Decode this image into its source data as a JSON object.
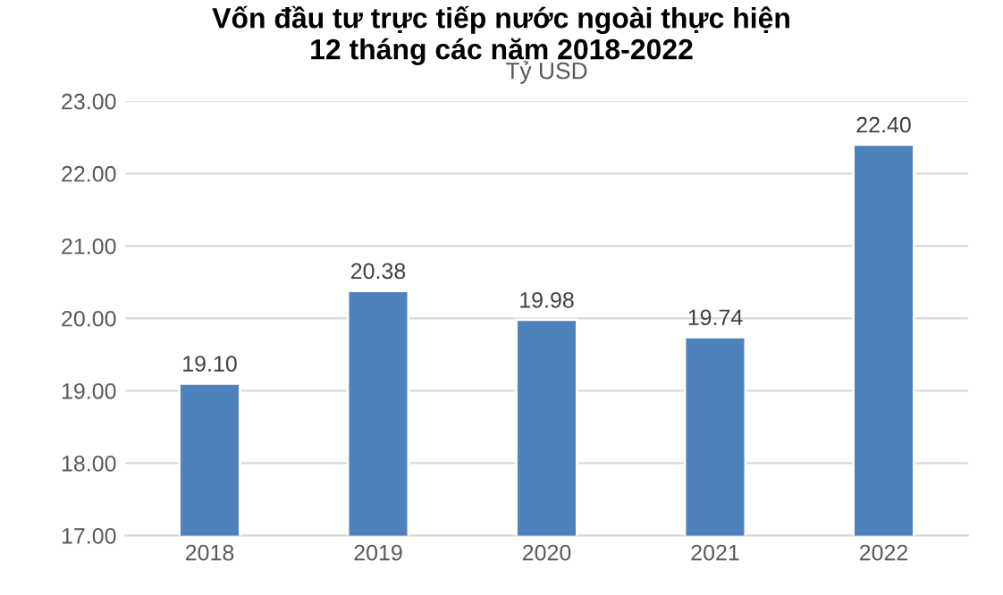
{
  "chart_data": {
    "type": "bar",
    "title": "Vốn đầu tư trực tiếp nước ngoài thực hiện\n12 tháng các năm 2018-2022",
    "subtitle": "Tỷ USD",
    "categories": [
      "2018",
      "2019",
      "2020",
      "2021",
      "2022"
    ],
    "values": [
      19.1,
      20.38,
      19.98,
      19.74,
      22.4
    ],
    "value_labels": [
      "19.10",
      "20.38",
      "19.98",
      "19.74",
      "22.40"
    ],
    "color": "#4f81bd",
    "ylim": [
      17,
      23
    ],
    "yticks": [
      {
        "value": 17,
        "label": "17.00"
      },
      {
        "value": 18,
        "label": "18.00"
      },
      {
        "value": 19,
        "label": "19.00"
      },
      {
        "value": 20,
        "label": "20.00"
      },
      {
        "value": 21,
        "label": "21.00"
      },
      {
        "value": 22,
        "label": "22.00"
      },
      {
        "value": 23,
        "label": "23.00"
      }
    ],
    "grid": "y"
  }
}
